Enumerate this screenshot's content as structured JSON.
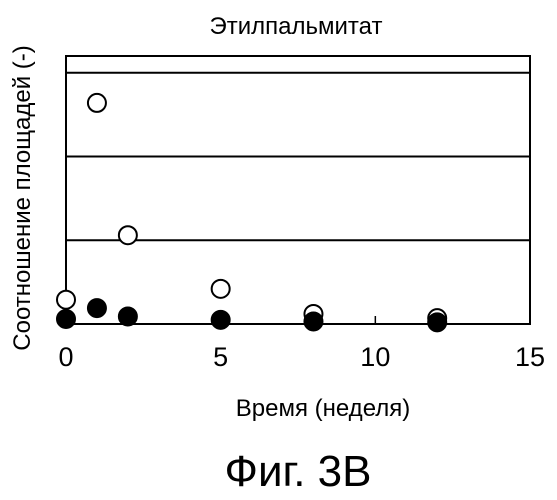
{
  "chart_data": {
    "type": "scatter",
    "title": "Этилпальмитат",
    "xlabel": "Время (неделя)",
    "ylabel": "Соотношение площадей (-)",
    "xlim": [
      0,
      15
    ],
    "ylim": [
      0,
      3.2
    ],
    "x_ticks": [
      0,
      5,
      10,
      15
    ],
    "x_tick_labels": [
      "0",
      "5",
      "10",
      "15"
    ],
    "y_ticks": [
      0,
      1,
      2,
      3
    ],
    "y_tick_labels": [],
    "grid": "horizontal",
    "series": [
      {
        "marker": "open-circle",
        "points": [
          {
            "x": 0,
            "y": 0.29
          },
          {
            "x": 1,
            "y": 2.64
          },
          {
            "x": 2,
            "y": 1.06
          },
          {
            "x": 5,
            "y": 0.42
          },
          {
            "x": 8,
            "y": 0.12
          },
          {
            "x": 12,
            "y": 0.07
          }
        ]
      },
      {
        "marker": "filled-circle",
        "points": [
          {
            "x": 0,
            "y": 0.06
          },
          {
            "x": 1,
            "y": 0.19
          },
          {
            "x": 2,
            "y": 0.09
          },
          {
            "x": 5,
            "y": 0.05
          },
          {
            "x": 8,
            "y": 0.03
          },
          {
            "x": 12,
            "y": 0.02
          }
        ]
      }
    ]
  },
  "caption": "Фиг. 3B",
  "colors": {
    "ink": "#000000",
    "background": "#ffffff"
  }
}
